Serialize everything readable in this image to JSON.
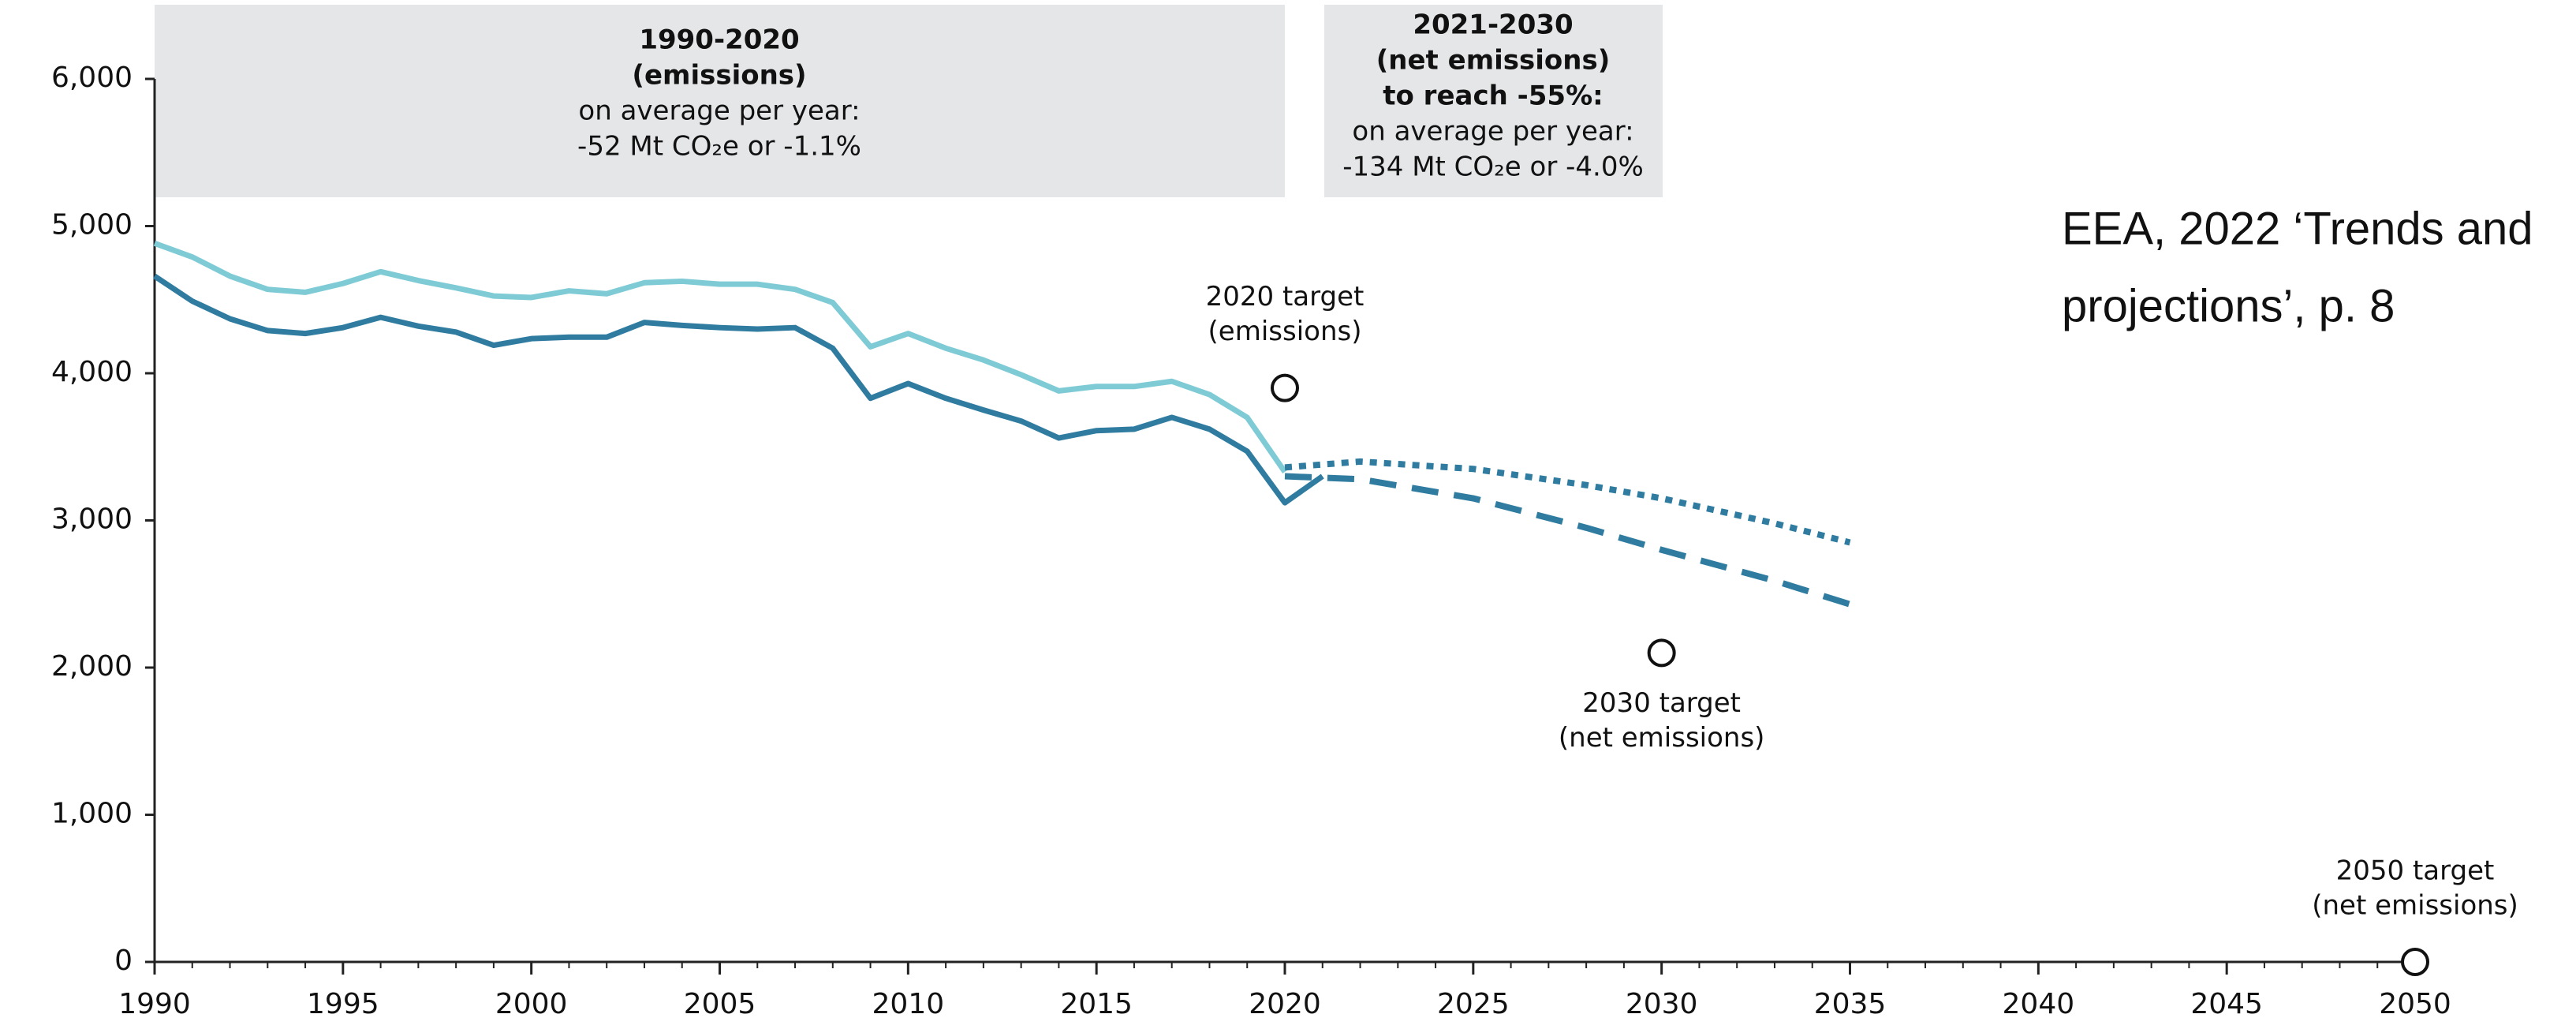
{
  "chart_data": {
    "type": "line",
    "xlim": [
      1990,
      2050
    ],
    "ylim": [
      0,
      6000
    ],
    "xticks": [
      1990,
      1995,
      2000,
      2005,
      2010,
      2015,
      2020,
      2025,
      2030,
      2035,
      2040,
      2045,
      2050
    ],
    "yticks": [
      0,
      {
        "value": 1000,
        "label": "1,000"
      },
      {
        "value": 2000,
        "label": "2,000"
      },
      {
        "value": 3000,
        "label": "3,000"
      },
      {
        "value": 4000,
        "label": "4,000"
      },
      {
        "value": 5000,
        "label": "5,000"
      },
      {
        "value": 6000,
        "label": "6,000"
      }
    ],
    "series": [
      {
        "color": "#7ecbd6",
        "style": "solid",
        "x": [
          1990,
          1991,
          1992,
          1993,
          1994,
          1995,
          1996,
          1997,
          1998,
          1999,
          2000,
          2001,
          2002,
          2003,
          2004,
          2005,
          2006,
          2007,
          2008,
          2009,
          2010,
          2011,
          2012,
          2013,
          2014,
          2015,
          2016,
          2017,
          2018,
          2019,
          2020
        ],
        "values": [
          4883,
          4790,
          4660,
          4570,
          4550,
          4610,
          4690,
          4630,
          4580,
          4525,
          4515,
          4560,
          4540,
          4615,
          4625,
          4605,
          4605,
          4570,
          4480,
          4180,
          4270,
          4170,
          4090,
          3990,
          3880,
          3910,
          3910,
          3945,
          3855,
          3700,
          3330
        ]
      },
      {
        "color": "#2f7ca0",
        "style": "solid",
        "x": [
          1990,
          1991,
          1992,
          1993,
          1994,
          1995,
          1996,
          1997,
          1998,
          1999,
          2000,
          2001,
          2002,
          2003,
          2004,
          2005,
          2006,
          2007,
          2008,
          2009,
          2010,
          2011,
          2012,
          2013,
          2014,
          2015,
          2016,
          2017,
          2018,
          2019,
          2020,
          2021
        ],
        "values": [
          4660,
          4490,
          4370,
          4290,
          4270,
          4310,
          4380,
          4320,
          4280,
          4190,
          4235,
          4245,
          4245,
          4345,
          4325,
          4310,
          4300,
          4310,
          4170,
          3830,
          3930,
          3830,
          3750,
          3675,
          3560,
          3610,
          3620,
          3700,
          3620,
          3470,
          3120,
          3300
        ]
      },
      {
        "color": "#2f7ca0",
        "style": "dotted",
        "x": [
          2020,
          2022,
          2025,
          2028,
          2030,
          2033,
          2035
        ],
        "values": [
          3360,
          3400,
          3350,
          3240,
          3150,
          2980,
          2850
        ]
      },
      {
        "color": "#2f7ca0",
        "style": "dashed",
        "x": [
          2020,
          2022,
          2025,
          2028,
          2030,
          2033,
          2035
        ],
        "values": [
          3300,
          3280,
          3150,
          2950,
          2800,
          2590,
          2430
        ]
      }
    ],
    "targets": [
      {
        "year": 2020,
        "value": 3900,
        "label": [
          "2020 target",
          "(emissions)"
        ],
        "label_position": "above"
      },
      {
        "year": 2030,
        "value": 2100,
        "label": [
          "2030 target",
          "(net emissions)"
        ],
        "label_position": "below"
      },
      {
        "year": 2050,
        "value": 0,
        "label": [
          "2050 target",
          "(net emissions)"
        ],
        "label_position": "above"
      }
    ],
    "boxes": [
      {
        "lines": [
          "1990-2020",
          "(emissions)",
          "on average per year:",
          "-52 Mt CO₂e or -1.1%"
        ],
        "bold": 2
      },
      {
        "lines": [
          "2021-2030",
          "(net emissions)",
          "to reach -55%:",
          "on average per year:",
          "-134 Mt CO₂e or -4.0%"
        ],
        "bold": 3
      }
    ],
    "source_note": [
      "EEA, 2022 ‘Trends and",
      "projections’, p. 8"
    ]
  }
}
